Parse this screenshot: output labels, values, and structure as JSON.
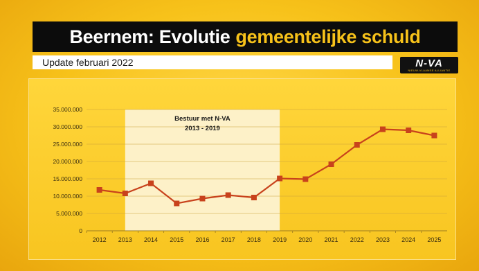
{
  "header": {
    "title_part1": "Beernem: Evolutie",
    "title_part2": "gemeentelijke schuld",
    "subtitle": "Update februari 2022"
  },
  "logo": {
    "text": "N-VA",
    "subtext": "NIEUW-VLAAMSE ALLIANTIE"
  },
  "colors": {
    "accent": "#f7c21a",
    "title_bg": "#0c0c0c",
    "line": "#c8421c",
    "highlight": "#fdf1c8"
  },
  "chart_data": {
    "type": "line",
    "title": "",
    "xlabel": "",
    "ylabel": "",
    "categories": [
      "2012",
      "2013",
      "2014",
      "2015",
      "2016",
      "2017",
      "2018",
      "2019",
      "2020",
      "2021",
      "2022",
      "2023",
      "2024",
      "2025"
    ],
    "series": [
      {
        "values": [
          11800000,
          10800000,
          13700000,
          7900000,
          9300000,
          10300000,
          9600000,
          15100000,
          14900000,
          19200000,
          24800000,
          29300000,
          29000000,
          27500000
        ]
      }
    ],
    "ylim": [
      0,
      35000000
    ],
    "yticks": [
      0,
      5000000,
      10000000,
      15000000,
      20000000,
      25000000,
      30000000,
      35000000
    ],
    "ytick_labels": [
      "0",
      "5.000.000",
      "10.000.000",
      "15.000.000",
      "20.000.000",
      "25.000.000",
      "30.000.000",
      "35.000.000"
    ],
    "grid": true,
    "annotation": {
      "line1": "Bestuur met N-VA",
      "line2": "2013 - 2019",
      "x_start": "2013",
      "x_end": "2019"
    }
  }
}
